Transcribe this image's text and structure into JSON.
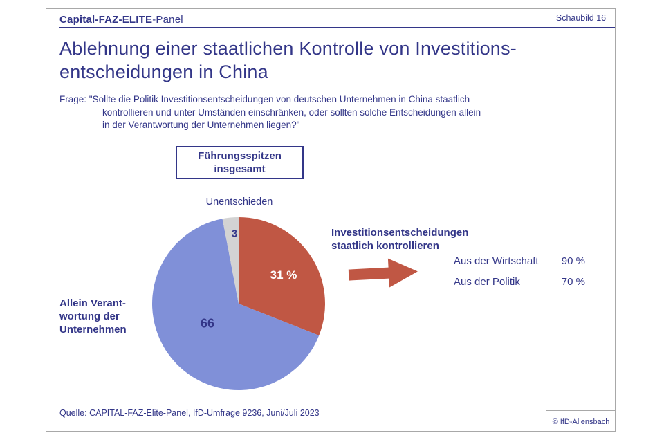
{
  "header": {
    "brand_bold": "Capital-FAZ-ELITE",
    "brand_rest": "-Panel",
    "schaubild": "Schaubild  16"
  },
  "title": "Ablehnung einer staatlichen Kontrolle von Investitions-\nentscheidungen in China",
  "question": {
    "line1": "Frage: \"Sollte die Politik Investitionsentscheidungen von deutschen Unternehmen in China staatlich",
    "line2": "kontrollieren und unter Umständen einschränken, oder sollten solche Entscheidungen allein",
    "line3": "in der Verantwortung der Unternehmen liegen?\""
  },
  "group_box": "Führungsspitzen\ninsgesamt",
  "chart_data": {
    "type": "pie",
    "title": "Ablehnung einer staatlichen Kontrolle von Investitionsentscheidungen in China",
    "subtitle": "Führungsspitzen insgesamt",
    "unit": "%",
    "start_angle_deg": -90,
    "direction": "clockwise",
    "slices": [
      {
        "label": "Investitionsentscheidungen staatlich kontrollieren",
        "value": 31,
        "display": "31 %",
        "color": "#c05744"
      },
      {
        "label": "Allein Verantwortung der Unternehmen",
        "value": 66,
        "display": "66",
        "color": "#8090d8"
      },
      {
        "label": "Unentschieden",
        "value": 3,
        "display": "3",
        "color": "#d3d3d3"
      }
    ],
    "side_values": [
      {
        "label": "Aus der Wirtschaft",
        "value": "90 %"
      },
      {
        "label": "Aus der Politik",
        "value": "70 %"
      }
    ]
  },
  "labels": {
    "left_display": "Allein Verant-\nwortung der\nUnternehmen",
    "right_heading_display": "Investitionsentscheidungen\nstaatlich kontrollieren"
  },
  "footer": {
    "source": "Quelle: CAPITAL-FAZ-Elite-Panel, IfD-Umfrage 9236, Juni/Juli 2023",
    "copyright": "© IfD-Allensbach"
  },
  "colors": {
    "navy": "#333688",
    "red": "#c05744",
    "blue": "#8090d8",
    "gray_slice": "#d3d3d3",
    "border_gray": "#a8a8a8"
  }
}
